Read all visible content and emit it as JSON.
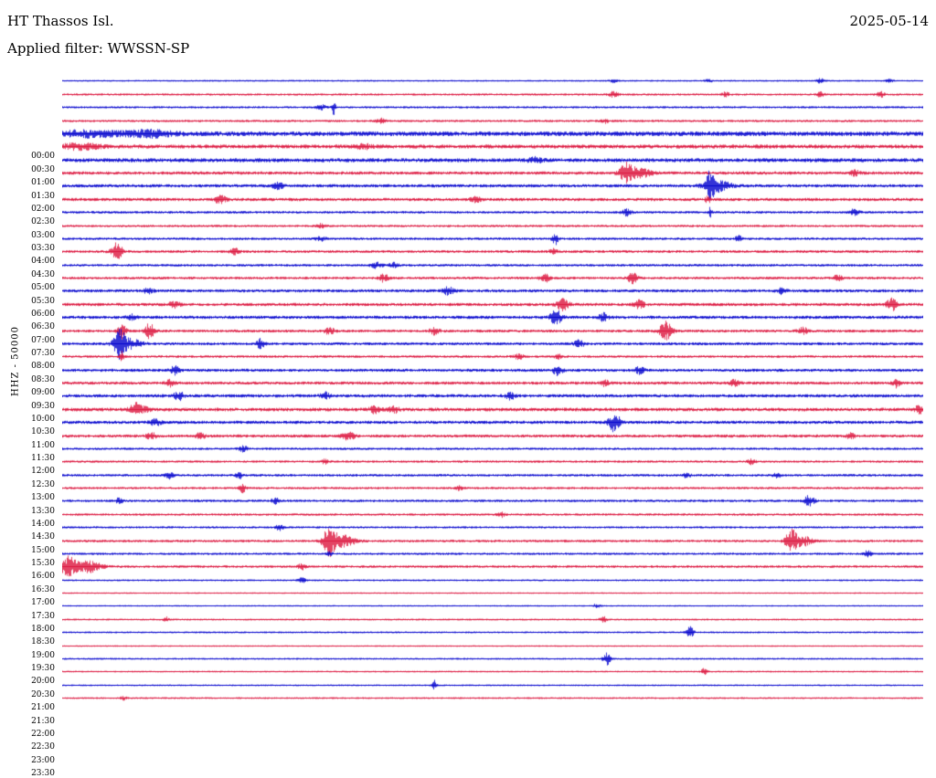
{
  "header": {
    "station": "HT Thassos Isl.",
    "date": "2025-05-14",
    "filter": "Applied filter: WWSSN-SP"
  },
  "y_axis_label": "HHZ - 50000",
  "chart_data": {
    "type": "line",
    "title": "HT Thassos Isl. helicorder 2025-05-14, WWSSN-SP filtered, channel HHZ, scale 50000",
    "xlabel": "",
    "ylabel": "HHZ - 50000",
    "x_range_per_row_minutes": 30,
    "legend": "none",
    "grid": false,
    "colors": {
      "even": "#0000cd",
      "odd": "#dc143c"
    },
    "rows": [
      {
        "t": "00:00",
        "noise": 0.9,
        "events": [
          [
            0.64,
            2,
            4
          ],
          [
            0.75,
            2,
            4
          ],
          [
            0.88,
            2.5,
            4
          ],
          [
            0.96,
            2,
            4
          ]
        ]
      },
      {
        "t": "00:30",
        "noise": 1.2,
        "events": [
          [
            0.64,
            3,
            5
          ],
          [
            0.77,
            2.5,
            4
          ],
          [
            0.88,
            2.5,
            4
          ],
          [
            0.95,
            3,
            4
          ]
        ]
      },
      {
        "t": "01:00",
        "noise": 1.2,
        "events": [
          [
            0.315,
            9,
            2
          ],
          [
            0.3,
            3,
            5
          ]
        ]
      },
      {
        "t": "01:30",
        "noise": 1.3,
        "events": [
          [
            0.37,
            2.5,
            5
          ],
          [
            0.63,
            2,
            4
          ]
        ]
      },
      {
        "t": "02:00",
        "noise": 2.6,
        "events": [
          [
            0.03,
            3,
            30
          ],
          [
            0.1,
            3,
            25
          ]
        ]
      },
      {
        "t": "02:30",
        "noise": 2.2,
        "events": [
          [
            0.02,
            3,
            20
          ],
          [
            0.35,
            2.5,
            8
          ]
        ]
      },
      {
        "t": "03:00",
        "noise": 2.2,
        "events": [
          [
            0.55,
            2.5,
            8
          ]
        ]
      },
      {
        "t": "03:30",
        "noise": 1.8,
        "events": [
          [
            0.655,
            10,
            7
          ],
          [
            0.67,
            5,
            12
          ],
          [
            0.92,
            3,
            5
          ]
        ]
      },
      {
        "t": "04:00",
        "noise": 1.8,
        "events": [
          [
            0.752,
            13,
            4
          ],
          [
            0.76,
            6,
            14
          ],
          [
            0.25,
            3,
            6
          ]
        ]
      },
      {
        "t": "04:30",
        "noise": 1.8,
        "events": [
          [
            0.183,
            4,
            6
          ],
          [
            0.48,
            3,
            5
          ],
          [
            0.75,
            4,
            3
          ]
        ]
      },
      {
        "t": "05:00",
        "noise": 1.4,
        "events": [
          [
            0.655,
            3.5,
            5
          ],
          [
            0.92,
            3.5,
            5
          ],
          [
            0.752,
            5,
            2
          ]
        ]
      },
      {
        "t": "05:30",
        "noise": 1.3,
        "events": [
          [
            0.3,
            2.5,
            5
          ]
        ]
      },
      {
        "t": "06:00",
        "noise": 1.4,
        "events": [
          [
            0.572,
            7,
            3
          ],
          [
            0.785,
            4,
            3
          ],
          [
            0.3,
            2.5,
            5
          ]
        ]
      },
      {
        "t": "06:30",
        "noise": 1.5,
        "events": [
          [
            0.063,
            9,
            6
          ],
          [
            0.2,
            3,
            5
          ],
          [
            0.57,
            3,
            4
          ]
        ]
      },
      {
        "t": "07:00",
        "noise": 1.4,
        "events": [
          [
            0.365,
            3,
            6
          ],
          [
            0.385,
            3,
            5
          ]
        ]
      },
      {
        "t": "07:30",
        "noise": 1.5,
        "events": [
          [
            0.373,
            4,
            5
          ],
          [
            0.56,
            4.5,
            5
          ],
          [
            0.662,
            5.5,
            5
          ],
          [
            0.9,
            3,
            5
          ]
        ]
      },
      {
        "t": "08:00",
        "noise": 1.7,
        "events": [
          [
            0.448,
            4,
            6
          ],
          [
            0.835,
            3,
            5
          ],
          [
            0.1,
            3,
            5
          ]
        ]
      },
      {
        "t": "08:30",
        "noise": 1.8,
        "events": [
          [
            0.581,
            7,
            6
          ],
          [
            0.67,
            4.5,
            5
          ],
          [
            0.963,
            7,
            5
          ],
          [
            0.13,
            3,
            6
          ]
        ]
      },
      {
        "t": "09:00",
        "noise": 1.8,
        "events": [
          [
            0.573,
            8,
            6
          ],
          [
            0.628,
            4,
            5
          ],
          [
            0.08,
            3,
            5
          ]
        ]
      },
      {
        "t": "09:30",
        "noise": 1.6,
        "events": [
          [
            0.069,
            10,
            4
          ],
          [
            0.101,
            8,
            5
          ],
          [
            0.31,
            3.5,
            5
          ],
          [
            0.432,
            3.5,
            5
          ],
          [
            0.7,
            10,
            7
          ],
          [
            0.86,
            3.5,
            5
          ]
        ]
      },
      {
        "t": "10:00",
        "noise": 1.6,
        "events": [
          [
            0.066,
            14,
            5
          ],
          [
            0.075,
            6,
            14
          ],
          [
            0.23,
            5,
            4
          ],
          [
            0.6,
            4,
            5
          ]
        ]
      },
      {
        "t": "10:30",
        "noise": 1.4,
        "events": [
          [
            0.069,
            5,
            2
          ],
          [
            0.53,
            3,
            5
          ],
          [
            0.575,
            3,
            4
          ]
        ]
      },
      {
        "t": "11:00",
        "noise": 1.7,
        "events": [
          [
            0.13,
            4.5,
            5
          ],
          [
            0.575,
            5,
            5
          ],
          [
            0.67,
            3.5,
            5
          ]
        ]
      },
      {
        "t": "11:30",
        "noise": 1.7,
        "events": [
          [
            0.125,
            3.5,
            5
          ],
          [
            0.63,
            3,
            5
          ],
          [
            0.78,
            3,
            5
          ],
          [
            0.968,
            4.5,
            4
          ]
        ]
      },
      {
        "t": "12:00",
        "noise": 1.8,
        "events": [
          [
            0.135,
            5,
            5
          ],
          [
            0.305,
            3.5,
            5
          ],
          [
            0.52,
            3.5,
            5
          ]
        ]
      },
      {
        "t": "12:30",
        "noise": 2.0,
        "events": [
          [
            0.085,
            4,
            6
          ],
          [
            0.09,
            3,
            10
          ],
          [
            0.363,
            4,
            6
          ],
          [
            0.385,
            3.5,
            5
          ],
          [
            0.995,
            5,
            4
          ]
        ]
      },
      {
        "t": "13:00",
        "noise": 1.8,
        "events": [
          [
            0.641,
            10,
            6
          ],
          [
            0.108,
            3,
            6
          ]
        ]
      },
      {
        "t": "13:30",
        "noise": 1.7,
        "events": [
          [
            0.103,
            3.5,
            5
          ],
          [
            0.16,
            3,
            5
          ],
          [
            0.332,
            4.5,
            6
          ],
          [
            0.915,
            3,
            4
          ]
        ]
      },
      {
        "t": "14:00",
        "noise": 1.3,
        "events": [
          [
            0.21,
            3,
            5
          ]
        ]
      },
      {
        "t": "14:30",
        "noise": 1.3,
        "events": [
          [
            0.305,
            2.5,
            4
          ],
          [
            0.8,
            3,
            4
          ]
        ]
      },
      {
        "t": "15:00",
        "noise": 1.4,
        "events": [
          [
            0.124,
            3.5,
            4
          ],
          [
            0.205,
            3.5,
            4
          ],
          [
            0.725,
            2.5,
            4
          ],
          [
            0.83,
            2.5,
            4
          ]
        ]
      },
      {
        "t": "15:30",
        "noise": 1.3,
        "events": [
          [
            0.209,
            4.5,
            4
          ],
          [
            0.46,
            2.5,
            4
          ]
        ]
      },
      {
        "t": "16:00",
        "noise": 1.4,
        "events": [
          [
            0.066,
            3,
            4
          ],
          [
            0.247,
            3,
            4
          ],
          [
            0.867,
            7,
            5
          ]
        ]
      },
      {
        "t": "16:30",
        "noise": 1.3,
        "events": [
          [
            0.51,
            2.5,
            4
          ]
        ]
      },
      {
        "t": "17:00",
        "noise": 1.2,
        "events": [
          [
            0.252,
            3,
            4
          ]
        ]
      },
      {
        "t": "17:30",
        "noise": 1.4,
        "events": [
          [
            0.31,
            14,
            7
          ],
          [
            0.325,
            6,
            14
          ],
          [
            0.846,
            12,
            6
          ],
          [
            0.86,
            5,
            10
          ]
        ]
      },
      {
        "t": "18:00",
        "noise": 1.3,
        "events": [
          [
            0.935,
            3.5,
            4
          ],
          [
            0.31,
            3,
            3
          ]
        ]
      },
      {
        "t": "18:30",
        "noise": 1.4,
        "events": [
          [
            0.007,
            11,
            8
          ],
          [
            0.03,
            6,
            14
          ],
          [
            0.278,
            3,
            4
          ]
        ]
      },
      {
        "t": "19:00",
        "noise": 1.0,
        "events": [
          [
            0.278,
            2.5,
            4
          ]
        ]
      },
      {
        "t": "19:30",
        "noise": 0.8,
        "events": []
      },
      {
        "t": "20:00",
        "noise": 0.8,
        "events": [
          [
            0.62,
            2,
            4
          ]
        ]
      },
      {
        "t": "20:30",
        "noise": 1.0,
        "events": [
          [
            0.12,
            2.5,
            4
          ],
          [
            0.628,
            3,
            4
          ]
        ]
      },
      {
        "t": "21:00",
        "noise": 1.0,
        "events": [
          [
            0.729,
            6,
            4
          ]
        ]
      },
      {
        "t": "21:30",
        "noise": 0.8,
        "events": []
      },
      {
        "t": "22:00",
        "noise": 1.0,
        "events": [
          [
            0.632,
            6.5,
            4
          ]
        ]
      },
      {
        "t": "22:30",
        "noise": 0.9,
        "events": [
          [
            0.745,
            3.5,
            3
          ]
        ]
      },
      {
        "t": "23:00",
        "noise": 0.9,
        "events": [
          [
            0.432,
            6,
            2
          ]
        ]
      },
      {
        "t": "23:30",
        "noise": 1.0,
        "events": [
          [
            0.07,
            2,
            4
          ]
        ]
      }
    ]
  }
}
